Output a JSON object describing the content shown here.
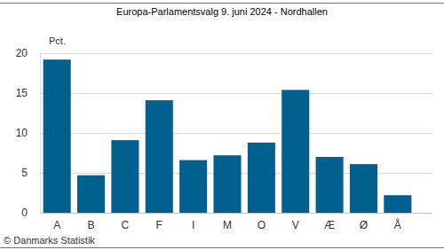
{
  "chart_data": {
    "type": "bar",
    "title": "Europa-Parlamentsvalg 9. juni 2024 - Nordhallen",
    "ylabel": "Pct.",
    "source": "© Danmarks Statistik",
    "categories": [
      "A",
      "B",
      "C",
      "F",
      "I",
      "M",
      "O",
      "V",
      "Æ",
      "Ø",
      "Å"
    ],
    "values": [
      19.2,
      4.7,
      9.1,
      14.1,
      6.6,
      7.2,
      8.8,
      15.4,
      7.0,
      6.1,
      2.2
    ],
    "color": "#00618f",
    "ylim": [
      0,
      20
    ],
    "yticks": [
      0,
      5,
      10,
      15,
      20
    ],
    "grid": true
  }
}
